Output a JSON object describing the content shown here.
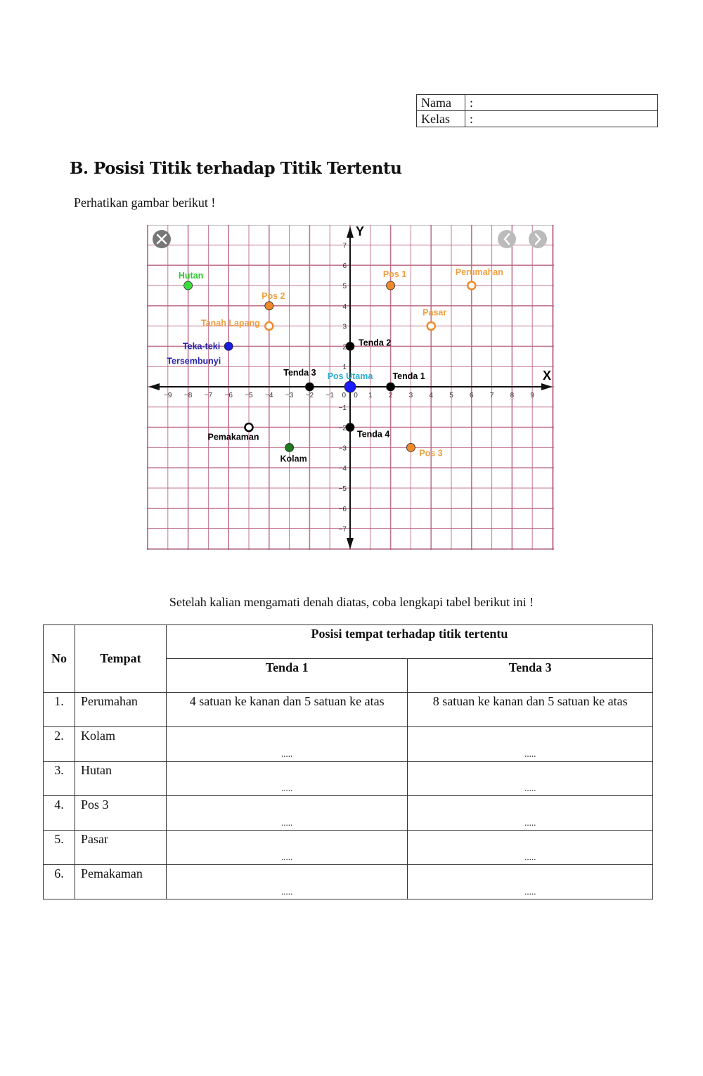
{
  "identity": {
    "rows": [
      {
        "label": "Nama",
        "value": ":"
      },
      {
        "label": "Kelas",
        "value": ":"
      }
    ]
  },
  "section_title": "B. Posisi Titik terhadap Titik Tertentu",
  "intro": "Perhatikan gambar berikut !",
  "instruction": "Setelah kalian mengamati denah diatas, coba lengkapi tabel berikut ini !",
  "table": {
    "headers": {
      "no": "No",
      "place": "Tempat",
      "group": "Posisi tempat terhadap titik tertentu",
      "ref1": "Tenda 1",
      "ref2": "Tenda 3"
    },
    "rows": [
      {
        "no": "1.",
        "place": "Perumahan",
        "ref1": "4 satuan ke kanan dan 5 satuan ke atas",
        "ref2": "8 satuan ke kanan dan 5 satuan ke atas"
      },
      {
        "no": "2.",
        "place": "Kolam",
        "ref1": ".....",
        "ref2": "....."
      },
      {
        "no": "3.",
        "place": "Hutan",
        "ref1": ".....",
        "ref2": "....."
      },
      {
        "no": "4.",
        "place": "Pos 3",
        "ref1": ".....",
        "ref2": "....."
      },
      {
        "no": "5.",
        "place": "Pasar",
        "ref1": ".....",
        "ref2": "....."
      },
      {
        "no": "6.",
        "place": "Pemakaman",
        "ref1": ".....",
        "ref2": "....."
      }
    ]
  },
  "chart_data": {
    "type": "scatter",
    "xlabel": "X",
    "ylabel": "Y",
    "xlim": [
      -10,
      10
    ],
    "ylim": [
      -8,
      8
    ],
    "xticks": [
      -9,
      -8,
      -7,
      -6,
      -5,
      -4,
      -3,
      -2,
      -1,
      0,
      1,
      2,
      3,
      4,
      5,
      6,
      7,
      8,
      9
    ],
    "yticks": [
      -7,
      -6,
      -5,
      -4,
      -3,
      -2,
      -1,
      1,
      2,
      3,
      4,
      5,
      6,
      7
    ],
    "grid": true,
    "grid_color": "#b8607e",
    "controls": [
      "close-icon",
      "chevron-left-icon",
      "chevron-right-icon"
    ],
    "points": [
      {
        "name": "Hutan",
        "x": -8,
        "y": 5,
        "color": "#3ddc3d",
        "label_color": "#2ec82e",
        "filled": true
      },
      {
        "name": "Pos 2",
        "x": -4,
        "y": 4,
        "color": "#f0892a",
        "label_color": "#f0a040",
        "filled": true
      },
      {
        "name": "Tanah Lapang",
        "x": -4,
        "y": 3,
        "color": "#f0892a",
        "label_color": "#f0a040",
        "filled": false
      },
      {
        "name": "Teka-teki",
        "name2": "Tersembunyi",
        "x": -6,
        "y": 2,
        "color": "#1a1ae0",
        "label_color": "#2424a8",
        "filled": true
      },
      {
        "name": "Tenda 2",
        "x": 0,
        "y": 2,
        "color": "#000000",
        "label_color": "#000000",
        "filled": true
      },
      {
        "name": "Tenda 3",
        "x": -2,
        "y": 0,
        "color": "#000000",
        "label_color": "#000000",
        "filled": true
      },
      {
        "name": "Pos Utama",
        "x": 0,
        "y": 0,
        "color": "#1a1aff",
        "label_color": "#2aaed0",
        "filled": true
      },
      {
        "name": "Tenda 1",
        "x": 2,
        "y": 0,
        "color": "#000000",
        "label_color": "#000000",
        "filled": true
      },
      {
        "name": "Pos 1",
        "x": 2,
        "y": 5,
        "color": "#f0892a",
        "label_color": "#f0a040",
        "filled": true
      },
      {
        "name": "Perumahan",
        "x": 6,
        "y": 5,
        "color": "#f0892a",
        "label_color": "#f0a040",
        "filled": false
      },
      {
        "name": "Pasar",
        "x": 4,
        "y": 3,
        "color": "#f0892a",
        "label_color": "#f0a040",
        "filled": false
      },
      {
        "name": "Pemakaman",
        "x": -5,
        "y": -2,
        "color": "#000000",
        "label_color": "#000000",
        "filled": false
      },
      {
        "name": "Kolam",
        "x": -3,
        "y": -3,
        "color": "#1e7a1e",
        "label_color": "#111111",
        "filled": true
      },
      {
        "name": "Tenda 4",
        "x": 0,
        "y": -2,
        "color": "#000000",
        "label_color": "#000000",
        "filled": true
      },
      {
        "name": "Pos 3",
        "x": 3,
        "y": -3,
        "color": "#f0892a",
        "label_color": "#f0a040",
        "filled": true
      }
    ]
  }
}
